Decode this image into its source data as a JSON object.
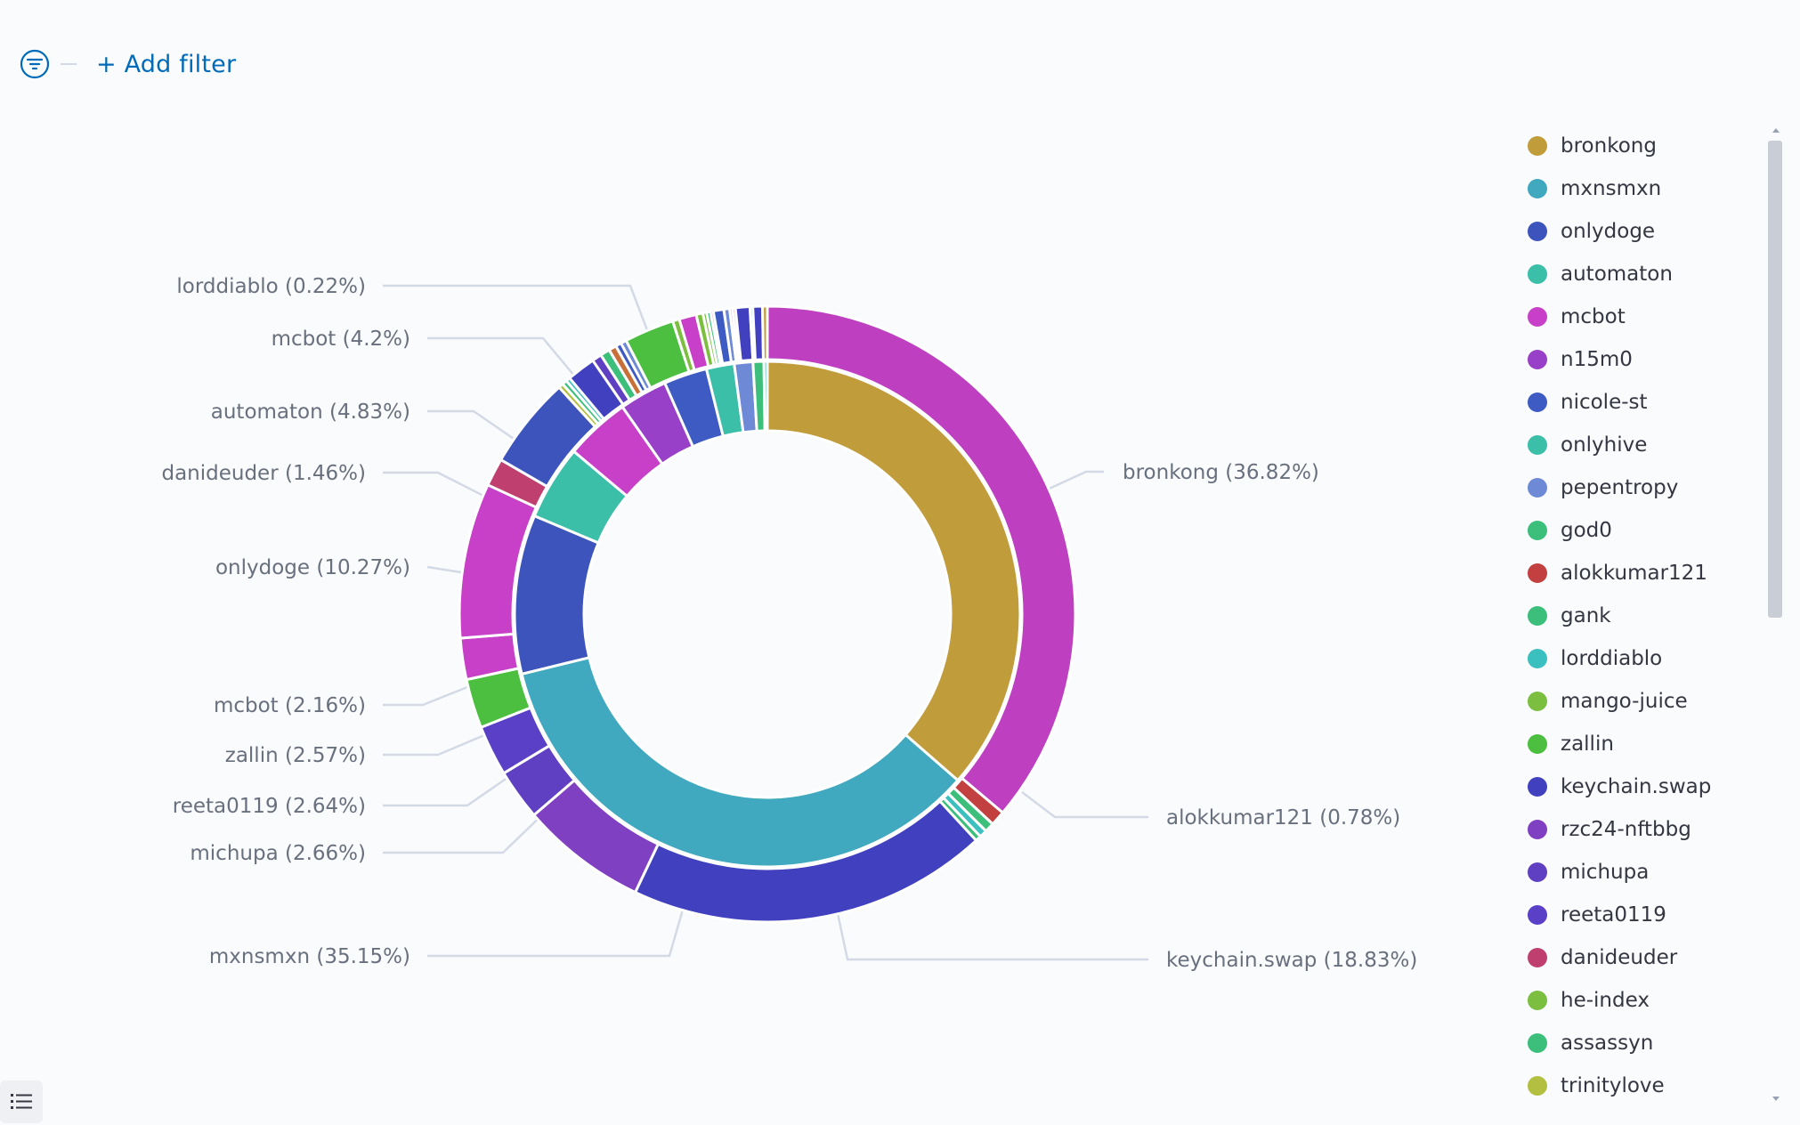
{
  "toolbar": {
    "add_filter_label": "+ Add filter"
  },
  "icons": {
    "filter": "filter-lines-icon",
    "legend_toggle": "list-icon"
  },
  "colors": {
    "accent": "#006bb8",
    "leader": "#d3dae6"
  },
  "chart_data": {
    "type": "sunburst",
    "title": "",
    "inner_ring": [
      {
        "name": "bronkong",
        "percent": 36.82,
        "color": "#c09c3b"
      },
      {
        "name": "mxnsmxn",
        "percent": 35.15,
        "color": "#40a9bf"
      },
      {
        "name": "onlydoge",
        "percent": 10.27,
        "color": "#3d54bd"
      },
      {
        "name": "automaton",
        "percent": 4.83,
        "color": "#3cbfa8"
      },
      {
        "name": "mcbot",
        "percent": 4.2,
        "color": "#c740c7"
      },
      {
        "name": "n15m0",
        "percent": 3.1,
        "color": "#9840c7"
      },
      {
        "name": "nicole-st",
        "percent": 2.8,
        "color": "#3d5bc2"
      },
      {
        "name": "onlyhive",
        "percent": 1.8,
        "color": "#3cbfa8"
      },
      {
        "name": "pepentropy",
        "percent": 1.2,
        "color": "#6e8ad6"
      },
      {
        "name": "god0",
        "percent": 0.7,
        "color": "#3cbf7a"
      },
      {
        "name": "lorddiablo",
        "percent": 0.22,
        "color": "#3cbfbf"
      }
    ],
    "outer_ring": [
      {
        "name": "mcbot",
        "percent": 36.0,
        "color": "#be40c1"
      },
      {
        "name": "alokkumar121",
        "percent": 0.78,
        "color": "#c24040"
      },
      {
        "name": "gank",
        "percent": 0.5,
        "color": "#3cbf7a"
      },
      {
        "name": "lorddiablo",
        "percent": 0.4,
        "color": "#3cbfbf"
      },
      {
        "name": "gank",
        "percent": 0.3,
        "color": "#3cbf7a"
      },
      {
        "name": "keychain.swap",
        "percent": 18.83,
        "color": "#4140bf"
      },
      {
        "name": "rzc24-nftbbg",
        "percent": 6.6,
        "color": "#8040c2"
      },
      {
        "name": "michupa",
        "percent": 2.66,
        "color": "#6040c2"
      },
      {
        "name": "reeta0119",
        "percent": 2.64,
        "color": "#5a40c7"
      },
      {
        "name": "zallin",
        "percent": 2.57,
        "color": "#4cbf40"
      },
      {
        "name": "mcbot",
        "percent": 2.16,
        "color": "#c740c7"
      },
      {
        "name": "mcbot",
        "percent": 8.1,
        "color": "#c740c7"
      },
      {
        "name": "danideuder",
        "percent": 1.46,
        "color": "#bf406e"
      },
      {
        "name": "onlydoge",
        "percent": 4.8,
        "color": "#3d54bd"
      },
      {
        "name": "trinitylove",
        "percent": 0.25,
        "color": "#b3bf40"
      },
      {
        "name": "assassyn",
        "percent": 0.25,
        "color": "#3cbf7a"
      },
      {
        "name": "lorddiablo",
        "percent": 0.22,
        "color": "#3cbfbf"
      },
      {
        "name": "keychain.swap",
        "percent": 1.5,
        "color": "#4140bf"
      },
      {
        "name": "michupa",
        "percent": 0.5,
        "color": "#6040c2"
      },
      {
        "name": "gank",
        "percent": 0.5,
        "color": "#3cbf7a"
      },
      {
        "name": "alokkumar121",
        "percent": 0.4,
        "color": "#c97038"
      },
      {
        "name": "nicole-st",
        "percent": 0.3,
        "color": "#3d5bc2"
      },
      {
        "name": "pepentropy",
        "percent": 0.3,
        "color": "#6e8ad6"
      },
      {
        "name": "zallin",
        "percent": 2.6,
        "color": "#4cbf40"
      },
      {
        "name": "he-index",
        "percent": 0.35,
        "color": "#7cbf40"
      },
      {
        "name": "mcbot",
        "percent": 0.9,
        "color": "#c740c7"
      },
      {
        "name": "he-index",
        "percent": 0.35,
        "color": "#7cbf40"
      },
      {
        "name": "mango-juice",
        "percent": 0.2,
        "color": "#7cbf40"
      },
      {
        "name": "gank",
        "percent": 0.2,
        "color": "#3cbf7a"
      },
      {
        "name": "danideuder",
        "percent": 0.15,
        "color": "#bf406e"
      },
      {
        "name": "nicole-st",
        "percent": 0.55,
        "color": "#3d5bc2"
      },
      {
        "name": "pepentropy",
        "percent": 0.3,
        "color": "#6e8ad6"
      },
      {
        "name": "danideuder",
        "percent": 0.15,
        "color": "#bf406e"
      },
      {
        "name": "alokkumar121",
        "percent": 0.15,
        "color": "#c24040"
      },
      {
        "name": "keychain.swap",
        "percent": 0.75,
        "color": "#4140bf"
      },
      {
        "name": "onlyhive",
        "percent": 0.15,
        "color": "#3cbfa8"
      },
      {
        "name": "keychain.swap",
        "percent": 0.5,
        "color": "#4140bf"
      },
      {
        "name": "mango-juice",
        "percent": 0.25,
        "color": "#c09c3b"
      }
    ],
    "labels": [
      {
        "text": "lorddiablo (0.22%)",
        "side": "left"
      },
      {
        "text": "mcbot (4.2%)",
        "side": "left"
      },
      {
        "text": "automaton (4.83%)",
        "side": "left"
      },
      {
        "text": "danideuder (1.46%)",
        "side": "left"
      },
      {
        "text": "onlydoge (10.27%)",
        "side": "left"
      },
      {
        "text": "mcbot (2.16%)",
        "side": "left"
      },
      {
        "text": "zallin (2.57%)",
        "side": "left"
      },
      {
        "text": "reeta0119 (2.64%)",
        "side": "left"
      },
      {
        "text": "michupa (2.66%)",
        "side": "left"
      },
      {
        "text": "mxnsmxn (35.15%)",
        "side": "left"
      },
      {
        "text": "bronkong (36.82%)",
        "side": "right"
      },
      {
        "text": "alokkumar121 (0.78%)",
        "side": "right"
      },
      {
        "text": "keychain.swap (18.83%)",
        "side": "right"
      }
    ],
    "legend": [
      {
        "name": "bronkong",
        "color": "#c09c3b"
      },
      {
        "name": "mxnsmxn",
        "color": "#40a9bf"
      },
      {
        "name": "onlydoge",
        "color": "#3d54bd"
      },
      {
        "name": "automaton",
        "color": "#3cbfa8"
      },
      {
        "name": "mcbot",
        "color": "#c740c7"
      },
      {
        "name": "n15m0",
        "color": "#9840c7"
      },
      {
        "name": "nicole-st",
        "color": "#3d5bc2"
      },
      {
        "name": "onlyhive",
        "color": "#3cbfa8"
      },
      {
        "name": "pepentropy",
        "color": "#6e8ad6"
      },
      {
        "name": "god0",
        "color": "#3cbf7a"
      },
      {
        "name": "alokkumar121",
        "color": "#c24040"
      },
      {
        "name": "gank",
        "color": "#3cbf7a"
      },
      {
        "name": "lorddiablo",
        "color": "#3cbfbf"
      },
      {
        "name": "mango-juice",
        "color": "#7cbf40"
      },
      {
        "name": "zallin",
        "color": "#4cbf40"
      },
      {
        "name": "keychain.swap",
        "color": "#4140bf"
      },
      {
        "name": "rzc24-nftbbg",
        "color": "#8040c2"
      },
      {
        "name": "michupa",
        "color": "#6040c2"
      },
      {
        "name": "reeta0119",
        "color": "#5a40c7"
      },
      {
        "name": "danideuder",
        "color": "#bf406e"
      },
      {
        "name": "he-index",
        "color": "#7cbf40"
      },
      {
        "name": "assassyn",
        "color": "#3cbf7a"
      },
      {
        "name": "trinitylove",
        "color": "#b3bf40"
      }
    ],
    "legend_position": "right"
  }
}
